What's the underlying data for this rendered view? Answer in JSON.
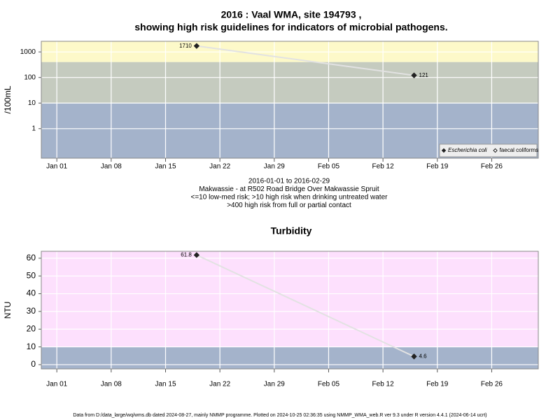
{
  "chart_data": [
    {
      "type": "line",
      "title": [
        "2016 : Vaal WMA, site 194793 ,",
        "showing high risk guidelines for indicators of microbial pathogens."
      ],
      "notes": [
        "2016-01-01 to 2016-02-29",
        "Makwassie - at R502 Road Bridge Over Makwassie Spruit",
        "<=10 low-med risk; >10 high risk when drinking untreated water",
        ">400 high risk from full or partial contact"
      ],
      "ylabel": "/100mL",
      "yscale": "log",
      "ylim": [
        0.07,
        2600
      ],
      "yticks": [
        1,
        10,
        100,
        1000
      ],
      "xlim": [
        "2015-12-30",
        "2016-03-03"
      ],
      "xticks": [
        {
          "value": "2016-01-01",
          "label": "Jan 01"
        },
        {
          "value": "2016-01-08",
          "label": "Jan 08"
        },
        {
          "value": "2016-01-15",
          "label": "Jan 15"
        },
        {
          "value": "2016-01-22",
          "label": "Jan 22"
        },
        {
          "value": "2016-01-29",
          "label": "Jan 29"
        },
        {
          "value": "2016-02-05",
          "label": "Feb 05"
        },
        {
          "value": "2016-02-12",
          "label": "Feb 12"
        },
        {
          "value": "2016-02-19",
          "label": "Feb 19"
        },
        {
          "value": "2016-02-26",
          "label": "Feb 26"
        }
      ],
      "grid": true,
      "bands": [
        {
          "min": 400,
          "color": "#fdf9c9"
        },
        {
          "min": 10,
          "max": 400,
          "color": "#c5cbbf"
        },
        {
          "max": 10,
          "color": "#a4b3cb"
        }
      ],
      "x": [
        "2016-01-19",
        "2016-02-16"
      ],
      "series": [
        {
          "name": "Escherichia coli",
          "color": "#222222",
          "marker": "filled",
          "line_color": "#e2e2e2",
          "values": [
            1710,
            121
          ]
        },
        {
          "name": "faecal coliforms",
          "color": "#222222",
          "marker": "open",
          "line_color": "#e2e2e2",
          "values": [
            null,
            null
          ]
        }
      ],
      "legend": "bottom-right"
    },
    {
      "type": "line",
      "title": [
        "Turbidity"
      ],
      "ylabel": "NTU",
      "ylim": [
        -2.4,
        63.9
      ],
      "yticks": [
        0,
        10,
        20,
        30,
        40,
        50,
        60
      ],
      "xlim": [
        "2015-12-30",
        "2016-03-03"
      ],
      "xticks": [
        {
          "value": "2016-01-01",
          "label": "Jan 01"
        },
        {
          "value": "2016-01-08",
          "label": "Jan 08"
        },
        {
          "value": "2016-01-15",
          "label": "Jan 15"
        },
        {
          "value": "2016-01-22",
          "label": "Jan 22"
        },
        {
          "value": "2016-01-29",
          "label": "Jan 29"
        },
        {
          "value": "2016-02-05",
          "label": "Feb 05"
        },
        {
          "value": "2016-02-12",
          "label": "Feb 12"
        },
        {
          "value": "2016-02-19",
          "label": "Feb 19"
        },
        {
          "value": "2016-02-26",
          "label": "Feb 26"
        }
      ],
      "grid": true,
      "bands": [
        {
          "min": 10,
          "color": "#fde0fd"
        },
        {
          "max": 10,
          "color": "#a4b3cb"
        }
      ],
      "x": [
        "2016-01-19",
        "2016-02-16"
      ],
      "series": [
        {
          "name": "Turbidity",
          "color": "#222222",
          "marker": "filled",
          "line_color": "#e2e2e2",
          "values": [
            61.8,
            4.6
          ]
        }
      ]
    }
  ],
  "footer": "Data from D:/data_large/wq/wms.db dated 2024-08-27, mainly NMMP programme. Plotted on 2024-10-25 02:36:35 using NMMP_WMA_web.R ver 9.3 under R version 4.4.1 (2024-06-14 ucrt)"
}
